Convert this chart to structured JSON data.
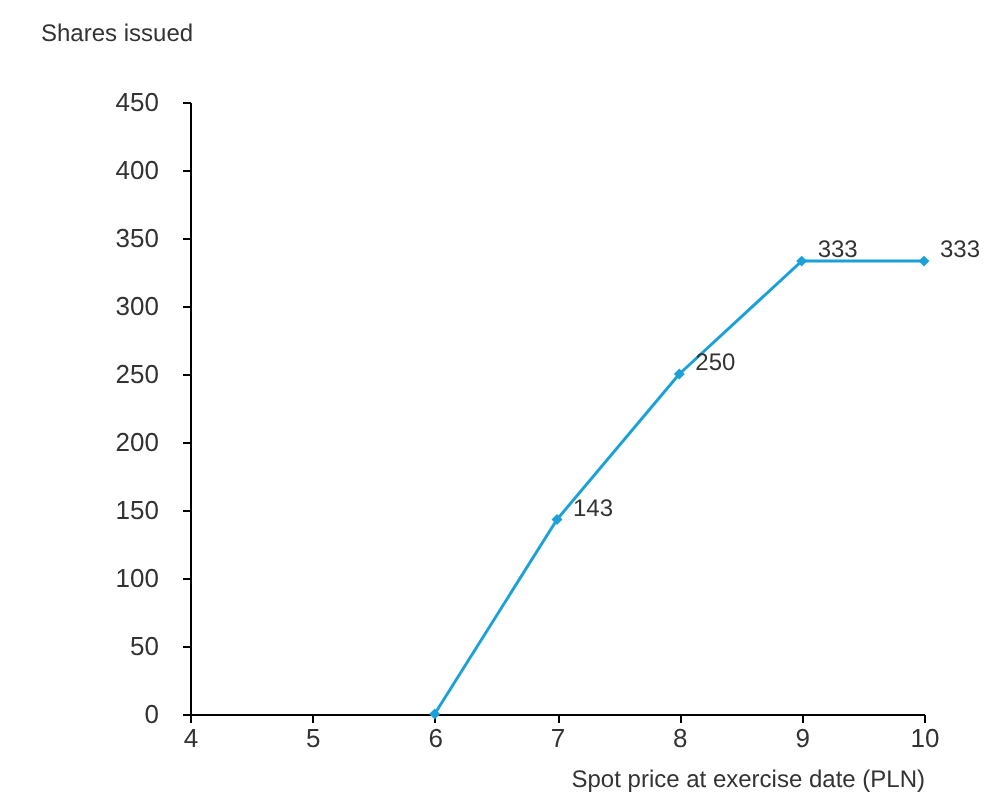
{
  "chart_data": {
    "type": "line",
    "xlabel": "Spot price at exercise date (PLN)",
    "ylabel": "Shares issued",
    "x": [
      6,
      7,
      8,
      9,
      10
    ],
    "series": [
      {
        "color": "#1ba1d8",
        "values": [
          0,
          143,
          250,
          333,
          333
        ],
        "value_labels": [
          null,
          "143",
          "250",
          "333",
          "333"
        ]
      }
    ],
    "xlim": [
      4,
      10
    ],
    "xticks": [
      4,
      5,
      6,
      7,
      8,
      9,
      10
    ],
    "ylim": [
      0,
      450
    ],
    "yticks": [
      0,
      50,
      100,
      150,
      200,
      250,
      300,
      350,
      400,
      450
    ],
    "grid": false,
    "marker": "diamond",
    "line_style": "solid"
  }
}
